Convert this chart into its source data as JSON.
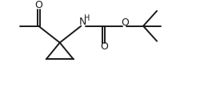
{
  "bg_color": "#ffffff",
  "line_color": "#1a1a1a",
  "line_width": 1.4,
  "font_size": 8.5,
  "figsize": [
    2.5,
    1.18
  ],
  "dpi": 100,
  "xlim": [
    0,
    2.5
  ],
  "ylim": [
    0,
    1.18
  ]
}
